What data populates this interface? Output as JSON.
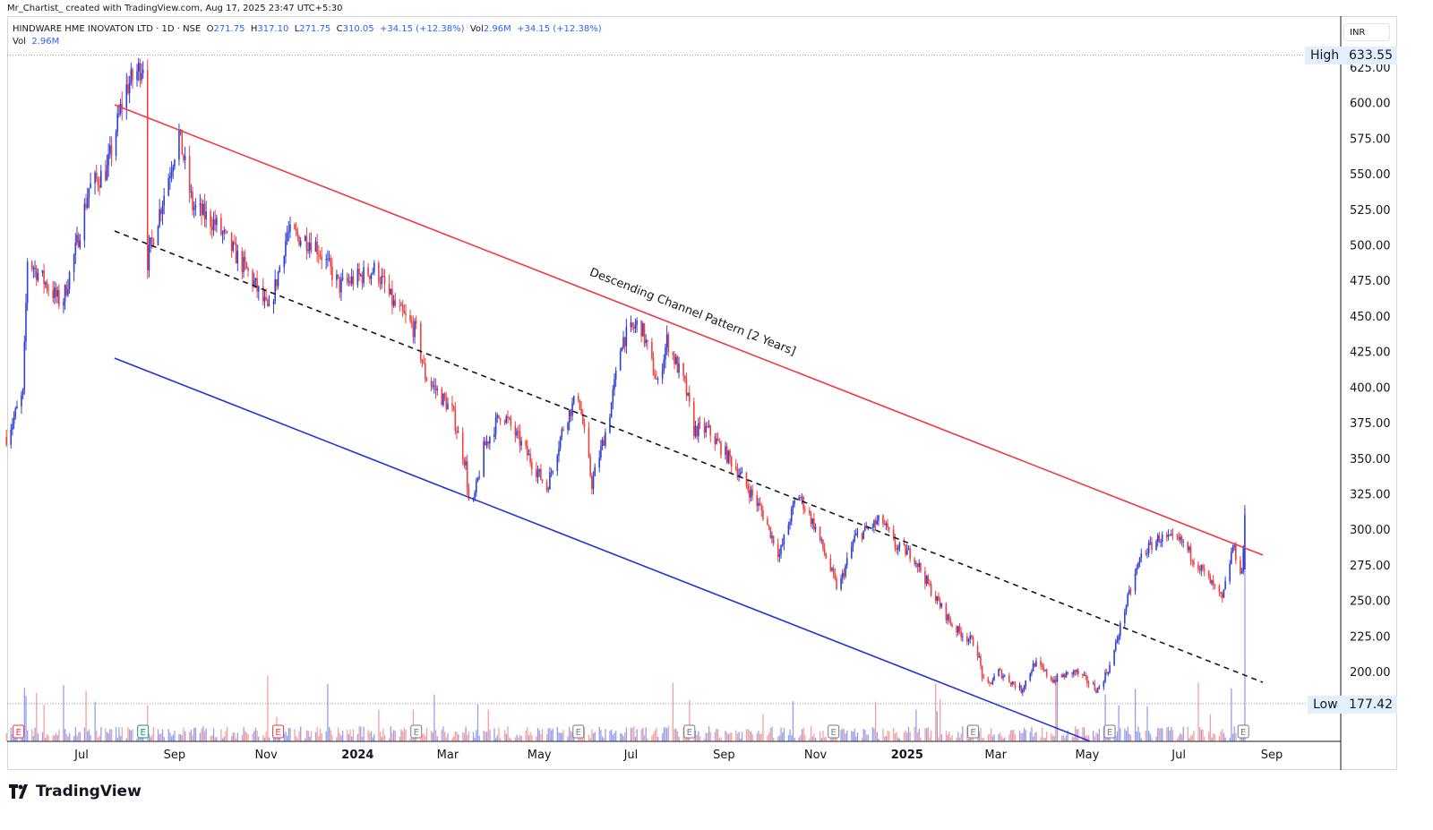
{
  "credit": "Mr_Chartist_ created with TradingView.com, Aug 17, 2025 23:47 UTC+5:30",
  "legend": {
    "symbol": "HINDWARE HME INOVATON LTD · 1D · NSE",
    "open_label": "O",
    "open": "271.75",
    "high_label": "H",
    "high": "317.10",
    "low_label": "L",
    "low": "271.75",
    "close_label": "C",
    "close": "310.05",
    "change": "+34.15 (+12.38%)",
    "vol_label": "Vol",
    "vol": "2.96M",
    "change2": "+34.15 (+12.38%)",
    "vol_row_label": "Vol",
    "vol_row": "2.96M"
  },
  "currency": "INR",
  "high_tag": {
    "label": "High",
    "value": "633.55"
  },
  "low_tag": {
    "label": "Low",
    "value": "177.42"
  },
  "logo": "TradingView",
  "colors": {
    "up": "#2e3fd6",
    "down": "#ef3f3f",
    "channel_upper": "#f23645",
    "channel_mid": "#131722",
    "channel_lower": "#2432d8"
  },
  "chart_data": {
    "type": "candlestick",
    "title": "",
    "ylim": [
      140,
      650
    ],
    "y_ticks": [
      "625.00",
      "600.00",
      "575.00",
      "550.00",
      "525.00",
      "500.00",
      "475.00",
      "450.00",
      "425.00",
      "400.00",
      "375.00",
      "350.00",
      "325.00",
      "300.00",
      "275.00",
      "250.00",
      "225.00",
      "200.00"
    ],
    "x_ticks": [
      {
        "label": "Jul",
        "date": "2023-07-01"
      },
      {
        "label": "Sep",
        "date": "2023-09-01"
      },
      {
        "label": "Nov",
        "date": "2023-11-01"
      },
      {
        "label": "2024",
        "date": "2024-01-01"
      },
      {
        "label": "Mar",
        "date": "2024-03-01"
      },
      {
        "label": "May",
        "date": "2024-05-01"
      },
      {
        "label": "Jul",
        "date": "2024-07-01"
      },
      {
        "label": "Sep",
        "date": "2024-09-01"
      },
      {
        "label": "Nov",
        "date": "2024-11-01"
      },
      {
        "label": "2025",
        "date": "2025-01-01"
      },
      {
        "label": "Mar",
        "date": "2025-03-01"
      },
      {
        "label": "May",
        "date": "2025-05-01"
      },
      {
        "label": "Jul",
        "date": "2025-07-01"
      },
      {
        "label": "Sep",
        "date": "2025-09-01"
      }
    ],
    "close_path": [
      [
        "2023-05-12",
        365
      ],
      [
        "2023-05-23",
        395
      ],
      [
        "2023-05-26",
        490
      ],
      [
        "2023-06-18",
        458
      ],
      [
        "2023-06-27",
        496
      ],
      [
        "2023-07-06",
        540
      ],
      [
        "2023-07-18",
        553
      ],
      [
        "2023-07-30",
        609
      ],
      [
        "2023-08-11",
        628
      ],
      [
        "2023-08-14",
        490
      ],
      [
        "2023-08-26",
        540
      ],
      [
        "2023-09-04",
        578
      ],
      [
        "2023-09-13",
        527
      ],
      [
        "2023-09-28",
        515
      ],
      [
        "2023-10-22",
        477
      ],
      [
        "2023-11-03",
        452
      ],
      [
        "2023-11-15",
        508
      ],
      [
        "2023-12-03",
        502
      ],
      [
        "2023-12-20",
        471
      ],
      [
        "2024-01-13",
        483
      ],
      [
        "2024-01-25",
        458
      ],
      [
        "2024-02-09",
        439
      ],
      [
        "2024-02-15",
        408
      ],
      [
        "2024-03-04",
        383
      ],
      [
        "2024-03-13",
        345
      ],
      [
        "2024-03-16",
        307
      ],
      [
        "2024-03-25",
        357
      ],
      [
        "2024-04-06",
        383
      ],
      [
        "2024-04-24",
        351
      ],
      [
        "2024-05-06",
        329
      ],
      [
        "2024-05-18",
        376
      ],
      [
        "2024-05-27",
        395
      ],
      [
        "2024-06-05",
        332
      ],
      [
        "2024-06-16",
        376
      ],
      [
        "2024-06-25",
        433
      ],
      [
        "2024-07-07",
        446
      ],
      [
        "2024-07-19",
        401
      ],
      [
        "2024-07-25",
        433
      ],
      [
        "2024-08-06",
        401
      ],
      [
        "2024-08-12",
        370
      ],
      [
        "2024-08-21",
        370
      ],
      [
        "2024-09-08",
        345
      ],
      [
        "2024-09-26",
        313
      ],
      [
        "2024-10-08",
        282
      ],
      [
        "2024-10-20",
        326
      ],
      [
        "2024-11-01",
        301
      ],
      [
        "2024-11-16",
        257
      ],
      [
        "2024-11-27",
        294
      ],
      [
        "2024-12-15",
        307
      ],
      [
        "2024-12-24",
        288
      ],
      [
        "2025-01-05",
        282
      ],
      [
        "2025-01-17",
        257
      ],
      [
        "2025-02-01",
        231
      ],
      [
        "2025-02-16",
        219
      ],
      [
        "2025-02-22",
        187
      ],
      [
        "2025-03-03",
        200
      ],
      [
        "2025-03-18",
        187
      ],
      [
        "2025-03-27",
        206
      ],
      [
        "2025-04-08",
        194
      ],
      [
        "2025-04-23",
        200
      ],
      [
        "2025-05-08",
        187
      ],
      [
        "2025-05-17",
        206
      ],
      [
        "2025-05-26",
        244
      ],
      [
        "2025-06-06",
        282
      ],
      [
        "2025-06-18",
        294
      ],
      [
        "2025-07-03",
        291
      ],
      [
        "2025-07-18",
        269
      ],
      [
        "2025-07-30",
        250
      ],
      [
        "2025-08-06",
        288
      ],
      [
        "2025-08-12",
        269
      ],
      [
        "2025-08-14",
        310.05
      ]
    ],
    "last_candle": {
      "date": "2025-08-14",
      "open": 271.75,
      "high": 317.1,
      "low": 271.75,
      "close": 310.05,
      "volume": "2.96M"
    },
    "high": 633.55,
    "low": 177.42,
    "trendlines": [
      {
        "name": "channel-upper",
        "points": [
          [
            "2023-07-23",
            598.6
          ],
          [
            "2025-08-26",
            281.9
          ]
        ],
        "style": "solid"
      },
      {
        "name": "channel-mid",
        "points": [
          [
            "2023-07-23",
            509.8
          ],
          [
            "2025-08-26",
            192.4
          ]
        ],
        "style": "dashed"
      },
      {
        "name": "channel-lower",
        "points": [
          [
            "2023-07-23",
            420.4
          ],
          [
            "2025-05-03",
            150.9
          ]
        ],
        "style": "solid"
      }
    ],
    "annotation": "Descending Channel Pattern [2 Years]",
    "earnings": [
      {
        "date": "2023-05-20",
        "type": "miss"
      },
      {
        "date": "2023-08-11",
        "type": "beat"
      },
      {
        "date": "2023-11-09",
        "type": "miss"
      },
      {
        "date": "2024-02-09",
        "type": "neutral"
      },
      {
        "date": "2024-05-27",
        "type": "neutral"
      },
      {
        "date": "2024-08-09",
        "type": "neutral"
      },
      {
        "date": "2024-11-13",
        "type": "neutral"
      },
      {
        "date": "2025-02-14",
        "type": "neutral"
      },
      {
        "date": "2025-05-16",
        "type": "neutral"
      },
      {
        "date": "2025-08-13",
        "type": "neutral"
      }
    ],
    "earnings_label": "E"
  }
}
